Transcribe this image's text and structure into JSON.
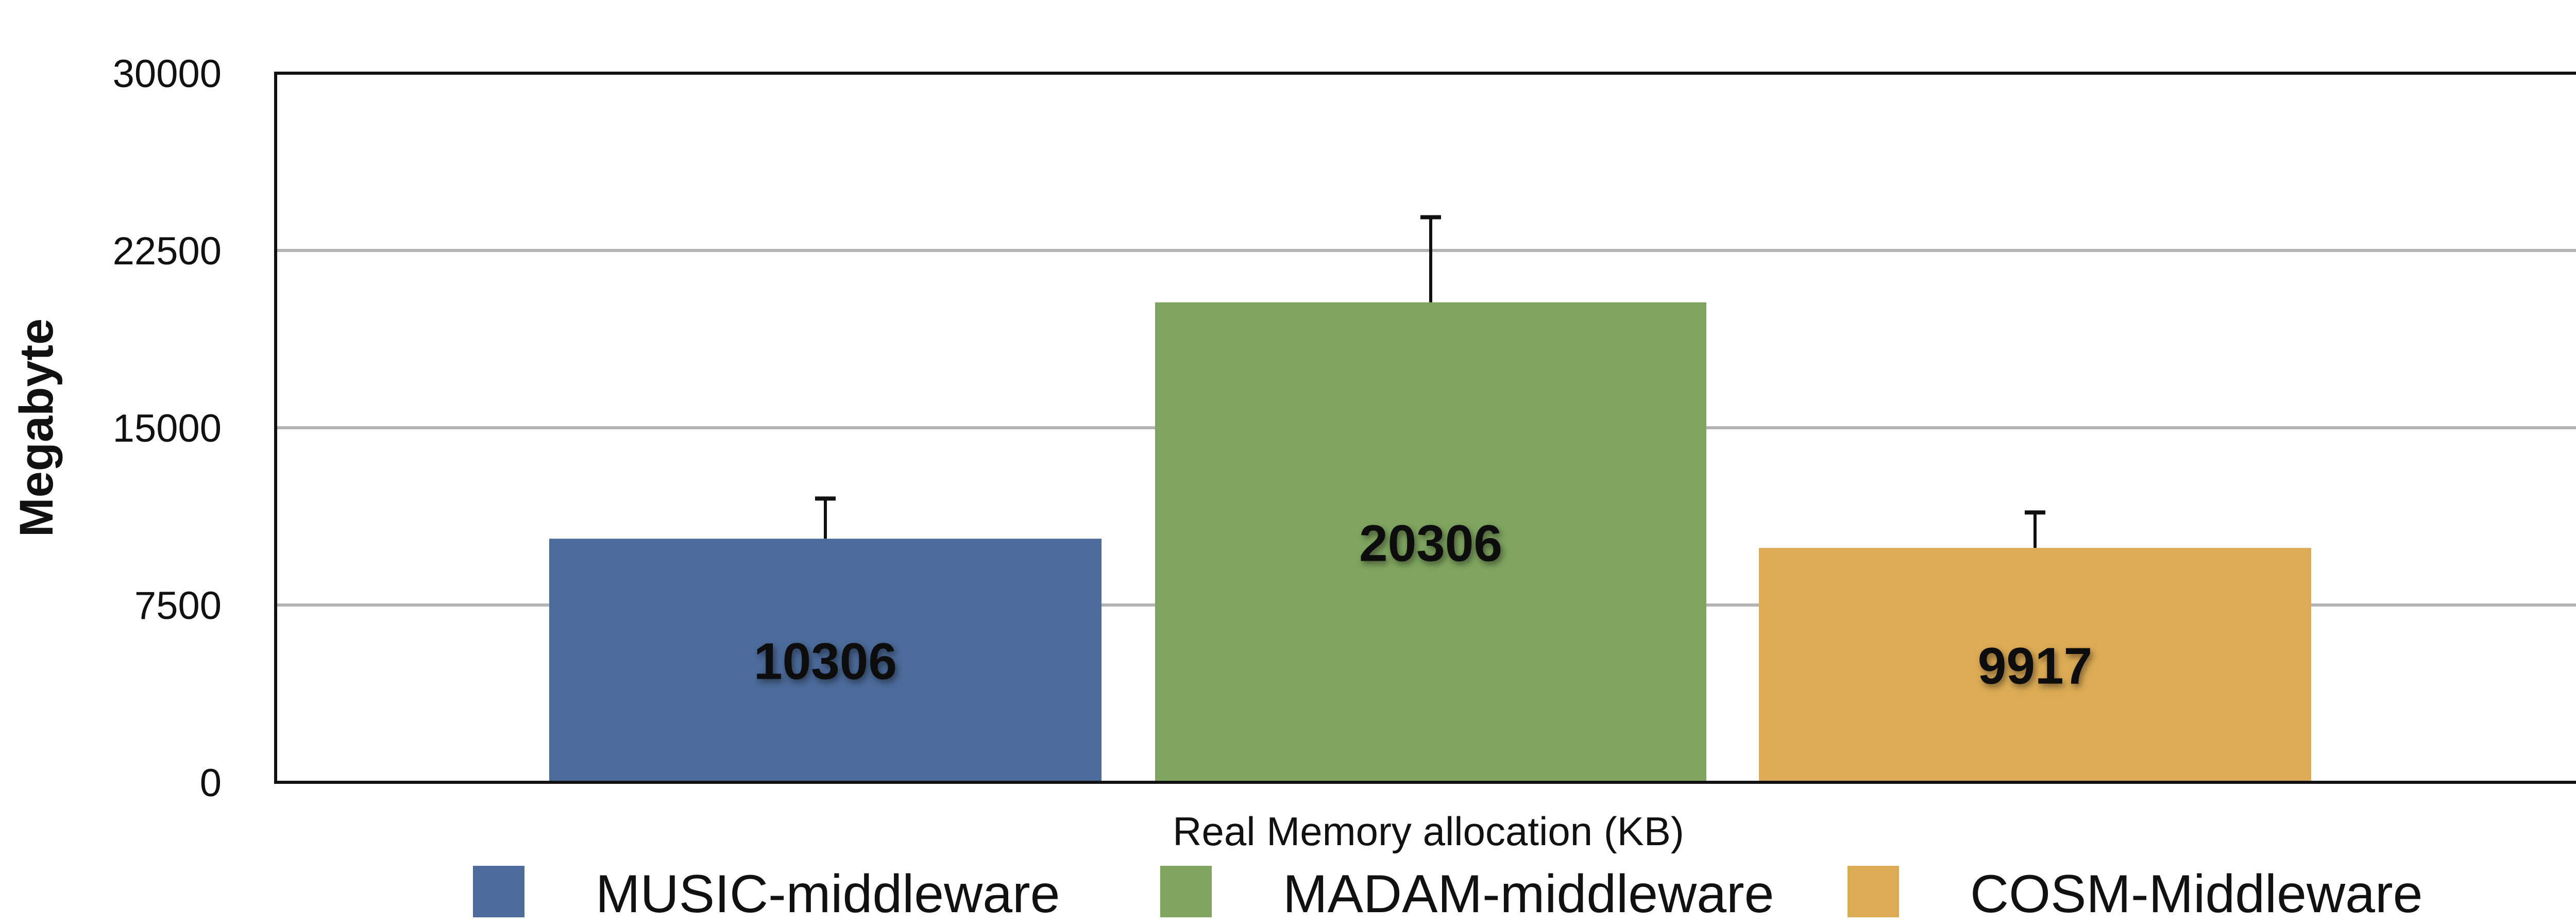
{
  "chart_data": {
    "type": "bar",
    "xlabel": "Real Memory allocation (KB)",
    "ylabel": "Megabyte",
    "ylim": [
      0,
      30000
    ],
    "yticks": [
      0,
      7500,
      15000,
      22500,
      30000
    ],
    "grid": true,
    "legend_position": "bottom",
    "series": [
      {
        "name": "MUSIC-middleware",
        "value": 10306,
        "error": 1700,
        "color": "#4c6b9a"
      },
      {
        "name": "MADAM-middleware",
        "value": 20306,
        "error": 3600,
        "color": "#80a560"
      },
      {
        "name": "COSM-Middleware",
        "value": 9917,
        "error": 1500,
        "color": "#dcab55"
      }
    ]
  }
}
